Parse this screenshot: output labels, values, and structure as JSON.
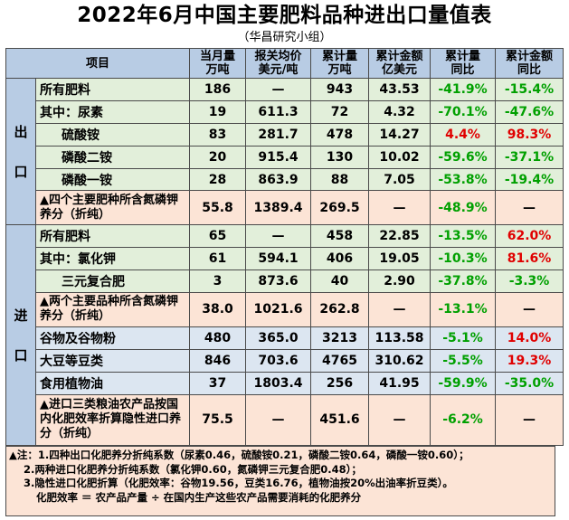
{
  "title": "2022年6月中国主要肥料品种进出口量值表",
  "subtitle": "（华昌研究小组）",
  "header": {
    "item": "项目",
    "month_qty": [
      "当月量",
      "万吨"
    ],
    "avg_price": [
      "报关均价",
      "美元/吨"
    ],
    "cum_qty": [
      "累计量",
      "万吨"
    ],
    "cum_value": [
      "累计金额",
      "亿美元"
    ],
    "cum_qty_yoy": [
      "累计量",
      "同比"
    ],
    "cum_value_yoy": [
      "累计金额",
      "同比"
    ]
  },
  "sections": {
    "export_label": "出 口",
    "import_label": "进 口"
  },
  "rows": [
    {
      "name": "所有肥料",
      "month": "186",
      "price": "—",
      "cum": "943",
      "value": "43.53",
      "qyoy": "-41.9%",
      "vyoy": "-15.4%",
      "qc": "neg",
      "vc": "neg",
      "bg": "green",
      "ind": false
    },
    {
      "name": "其中：尿素",
      "month": "19",
      "price": "611.3",
      "cum": "72",
      "value": "4.32",
      "qyoy": "-70.1%",
      "vyoy": "-47.6%",
      "qc": "neg",
      "vc": "neg",
      "bg": "green",
      "ind": false
    },
    {
      "name": "硫酸铵",
      "month": "83",
      "price": "281.7",
      "cum": "478",
      "value": "14.27",
      "qyoy": "4.4%",
      "vyoy": "98.3%",
      "qc": "pos",
      "vc": "pos",
      "bg": "green",
      "ind": true
    },
    {
      "name": "磷酸二铵",
      "month": "20",
      "price": "915.4",
      "cum": "130",
      "value": "10.02",
      "qyoy": "-59.6%",
      "vyoy": "-37.1%",
      "qc": "neg",
      "vc": "neg",
      "bg": "green",
      "ind": true
    },
    {
      "name": "磷酸一铵",
      "month": "28",
      "price": "863.9",
      "cum": "88",
      "value": "7.05",
      "qyoy": "-53.8%",
      "vyoy": "-19.4%",
      "qc": "neg",
      "vc": "neg",
      "bg": "green",
      "ind": true
    },
    {
      "name": "▲四个主要肥种所含氮磷钾养分（折纯）",
      "month": "55.8",
      "price": "1389.4",
      "cum": "269.5",
      "value": "—",
      "qyoy": "-48.9%",
      "vyoy": "—",
      "qc": "neg",
      "vc": "",
      "bg": "orange",
      "ind": false
    },
    {
      "name": "所有肥料",
      "month": "65",
      "price": "—",
      "cum": "458",
      "value": "22.85",
      "qyoy": "-13.5%",
      "vyoy": "62.0%",
      "qc": "neg",
      "vc": "pos",
      "bg": "green",
      "ind": false
    },
    {
      "name": "其中：氯化钾",
      "month": "61",
      "price": "594.1",
      "cum": "406",
      "value": "19.05",
      "qyoy": "-10.3%",
      "vyoy": "81.6%",
      "qc": "neg",
      "vc": "pos",
      "bg": "green",
      "ind": false
    },
    {
      "name": "三元复合肥",
      "month": "3",
      "price": "873.6",
      "cum": "40",
      "value": "2.90",
      "qyoy": "-37.8%",
      "vyoy": "-3.3%",
      "qc": "neg",
      "vc": "neg",
      "bg": "green",
      "ind": true
    },
    {
      "name": "▲两个主要品种所含氮磷钾养分（折纯）",
      "month": "38.0",
      "price": "1021.6",
      "cum": "262.8",
      "value": "—",
      "qyoy": "-13.1%",
      "vyoy": "—",
      "qc": "neg",
      "vc": "",
      "bg": "orange",
      "ind": false
    },
    {
      "name": "谷物及谷物粉",
      "month": "480",
      "price": "365.0",
      "cum": "3213",
      "value": "113.58",
      "qyoy": "-5.1%",
      "vyoy": "14.0%",
      "qc": "neg",
      "vc": "pos",
      "bg": "blue",
      "ind": false
    },
    {
      "name": "大豆等豆类",
      "month": "846",
      "price": "703.6",
      "cum": "4765",
      "value": "310.62",
      "qyoy": "-5.5%",
      "vyoy": "19.3%",
      "qc": "neg",
      "vc": "pos",
      "bg": "blue",
      "ind": false
    },
    {
      "name": "食用植物油",
      "month": "37",
      "price": "1803.4",
      "cum": "256",
      "value": "41.95",
      "qyoy": "-59.9%",
      "vyoy": "-35.0%",
      "qc": "neg",
      "vc": "neg",
      "bg": "blue",
      "ind": false
    },
    {
      "name": "▲进口三类粮油农产品按国内化肥效率折算隐性进口养分（折纯）",
      "month": "75.5",
      "price": "—",
      "cum": "451.6",
      "value": "—",
      "qyoy": "-6.2%",
      "vyoy": "—",
      "qc": "neg",
      "vc": "",
      "bg": "orange",
      "ind": false
    }
  ],
  "notes": [
    "▲注：1.四种出口化肥养分折纯系数（尿素0.46，硫酸铵0.21，磷酸二铵0.64，磷酸一铵0.60）；",
    "2.两种进口化肥养分折纯系数（氯化钾0.60，氮磷钾三元复合肥0.48）；",
    "3.隐性进口化肥折算（化肥效率：谷物19.56，豆类16.76，植物油按20%出油率折豆类）。",
    "化肥效率 ＝ 农产品产量 ÷ 在国内生产这些农产品需要消耗的化肥养分"
  ],
  "colors": {
    "header_bg": "#b8cce4",
    "green_row": "#e2efda",
    "orange_row": "#fce4d6",
    "blue_row": "#dce6f1",
    "positive": "#e00000",
    "negative": "#00a000"
  }
}
